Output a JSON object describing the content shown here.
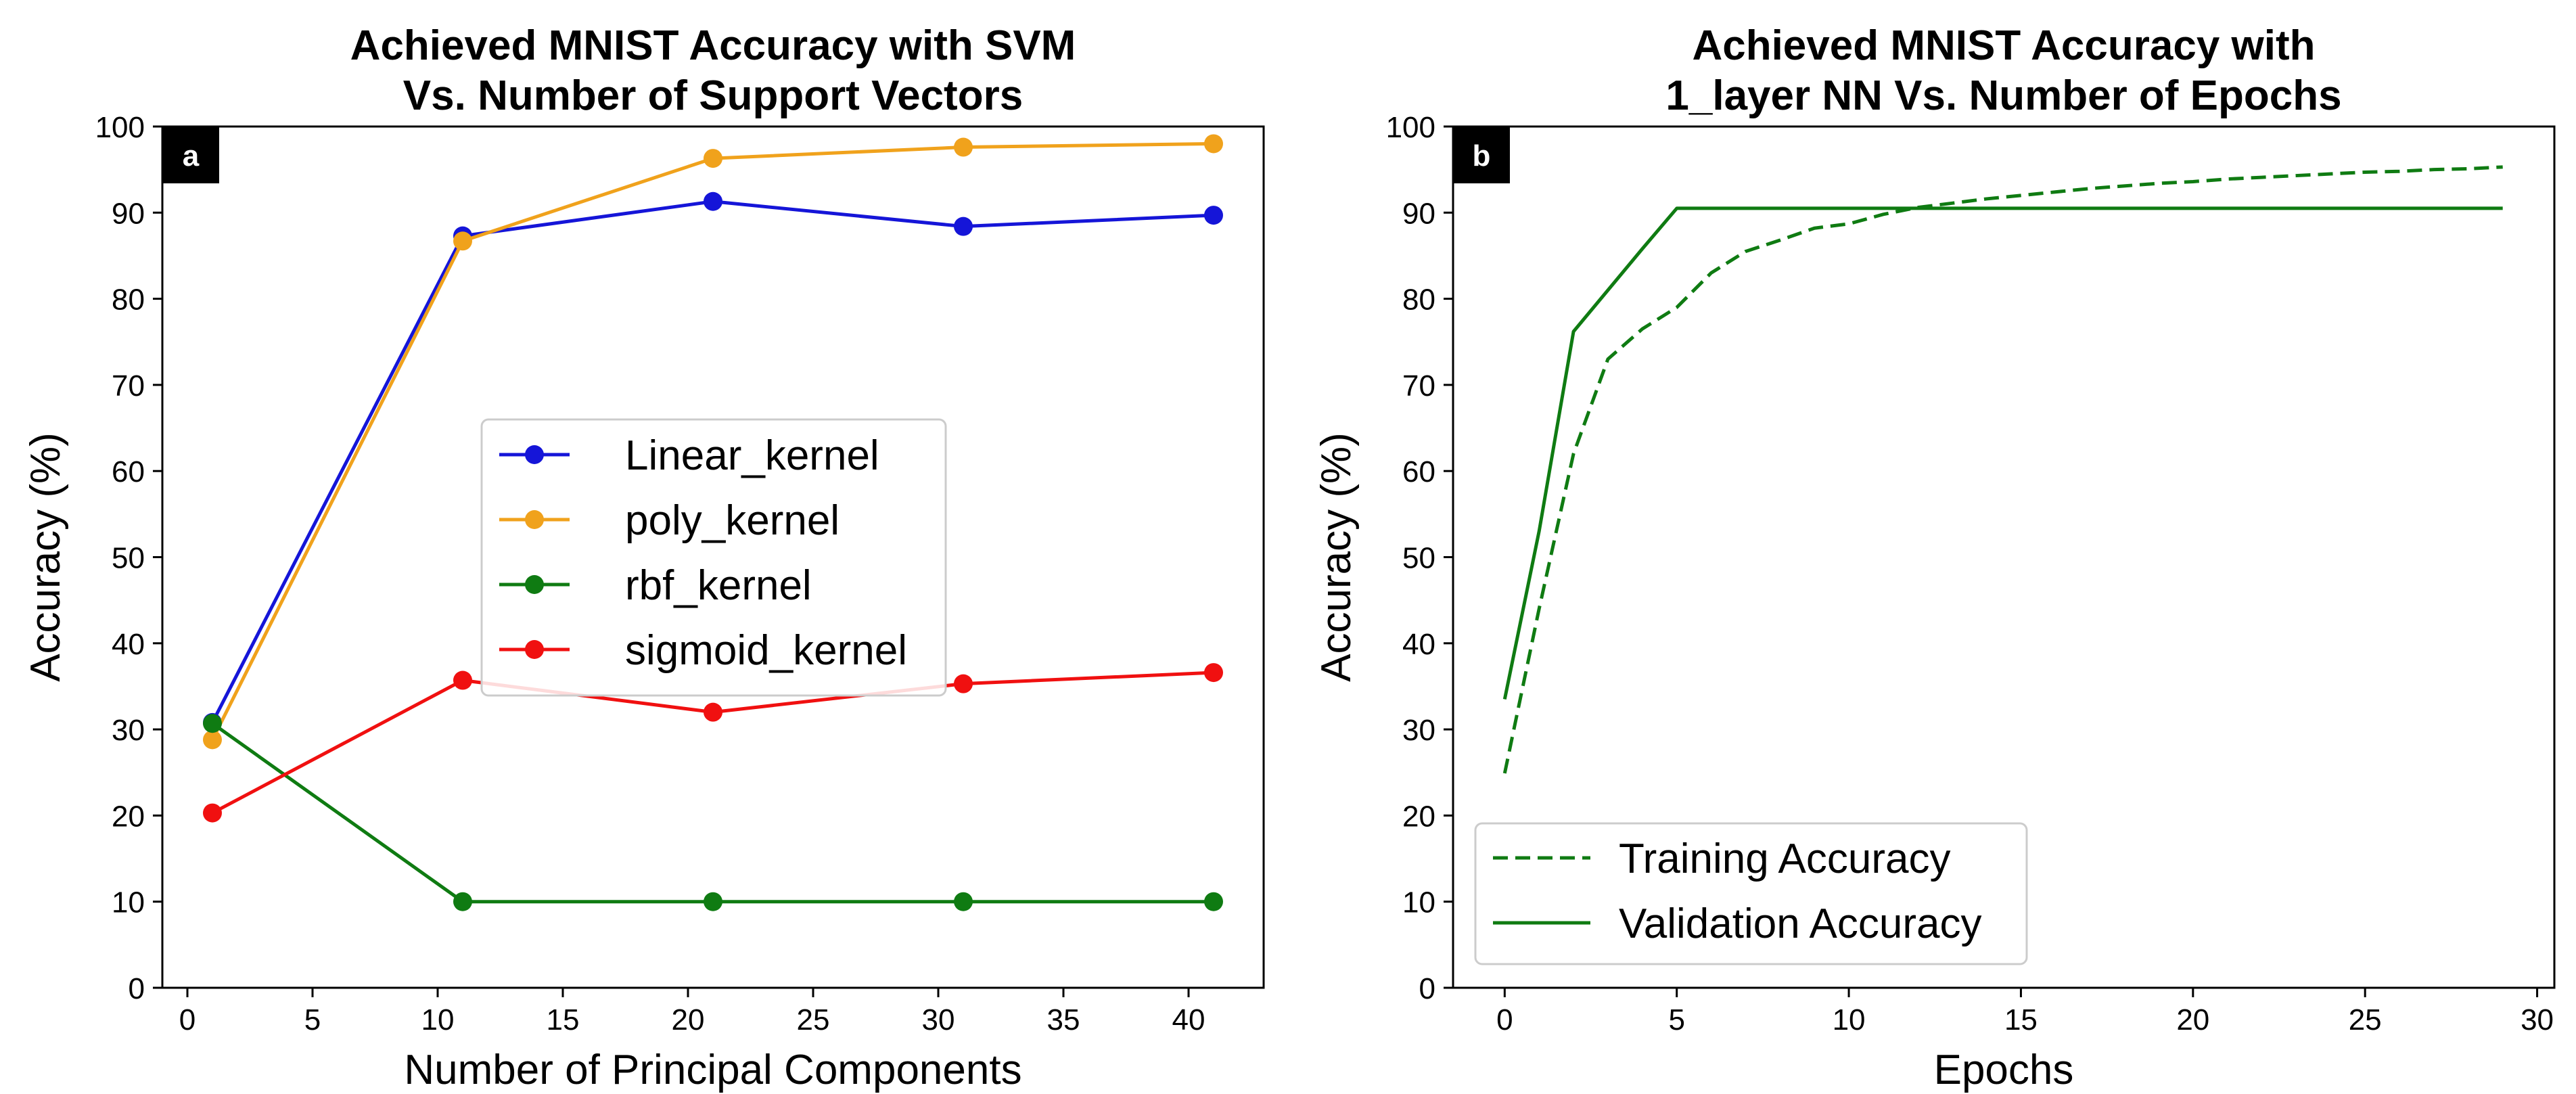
{
  "chart_data": [
    {
      "type": "line",
      "panel_label": "a",
      "title": [
        "Achieved MNIST Accuracy with SVM",
        "Vs. Number of Support Vectors"
      ],
      "xlabel": "Number of Principal Components",
      "ylabel": "Accuracy (%)",
      "xlim": [
        -1,
        43
      ],
      "ylim": [
        0,
        100
      ],
      "xticks": [
        0,
        5,
        10,
        15,
        20,
        25,
        30,
        35,
        40
      ],
      "yticks": [
        0,
        10,
        20,
        30,
        40,
        50,
        60,
        70,
        80,
        90,
        100
      ],
      "legend_position": "center",
      "x": [
        1,
        11,
        21,
        31,
        41
      ],
      "series": [
        {
          "name": "Linear_kernel",
          "color": "#1515d8",
          "marker": "circle",
          "style": "solid",
          "values": [
            30.8,
            87.3,
            91.3,
            88.4,
            89.7
          ]
        },
        {
          "name": "poly_kernel",
          "color": "#f0a21c",
          "marker": "circle",
          "style": "solid",
          "values": [
            28.8,
            86.7,
            96.3,
            97.6,
            98.0
          ]
        },
        {
          "name": "rbf_kernel",
          "color": "#0f7b12",
          "marker": "circle",
          "style": "solid",
          "values": [
            30.7,
            10.0,
            10.0,
            10.0,
            10.0
          ]
        },
        {
          "name": "sigmoid_kernel",
          "color": "#f01010",
          "marker": "circle",
          "style": "solid",
          "values": [
            20.3,
            35.7,
            32.0,
            35.3,
            36.6
          ]
        }
      ]
    },
    {
      "type": "line",
      "panel_label": "b",
      "title": [
        "Achieved MNIST Accuracy with",
        "1_layer NN Vs. Number of Epochs"
      ],
      "xlabel": "Epochs",
      "ylabel": "Accuracy (%)",
      "xlim": [
        -1.5,
        30.5
      ],
      "ylim": [
        0,
        100
      ],
      "xticks": [
        0,
        5,
        10,
        15,
        20,
        25,
        30
      ],
      "yticks": [
        0,
        10,
        20,
        30,
        40,
        50,
        60,
        70,
        80,
        90,
        100
      ],
      "legend_position": "lower-left",
      "x": [
        0,
        1,
        2,
        3,
        4,
        5,
        6,
        7,
        8,
        9,
        10,
        11,
        12,
        13,
        14,
        15,
        16,
        17,
        18,
        19,
        20,
        21,
        22,
        23,
        24,
        25,
        26,
        27,
        28,
        29
      ],
      "series": [
        {
          "name": "Training Accuracy",
          "color": "#0f7b12",
          "marker": "none",
          "style": "dashed",
          "values": [
            24.9,
            44.0,
            62.0,
            73.0,
            76.5,
            79.0,
            83.0,
            85.5,
            86.8,
            88.2,
            88.7,
            89.8,
            90.6,
            91.1,
            91.6,
            92.0,
            92.4,
            92.8,
            93.1,
            93.4,
            93.6,
            93.9,
            94.1,
            94.3,
            94.5,
            94.7,
            94.8,
            95.0,
            95.1,
            95.3
          ]
        },
        {
          "name": "Validation Accuracy",
          "color": "#0f7b12",
          "marker": "none",
          "style": "solid",
          "values": [
            33.5,
            53.0,
            76.2,
            81.0,
            85.8,
            90.5,
            90.5,
            90.5,
            90.5,
            90.5,
            90.5,
            90.5,
            90.5,
            90.5,
            90.5,
            90.5,
            90.5,
            90.5,
            90.5,
            90.5,
            90.5,
            90.5,
            90.5,
            90.5,
            90.5,
            90.5,
            90.5,
            90.5,
            90.5,
            90.5
          ]
        }
      ]
    }
  ]
}
